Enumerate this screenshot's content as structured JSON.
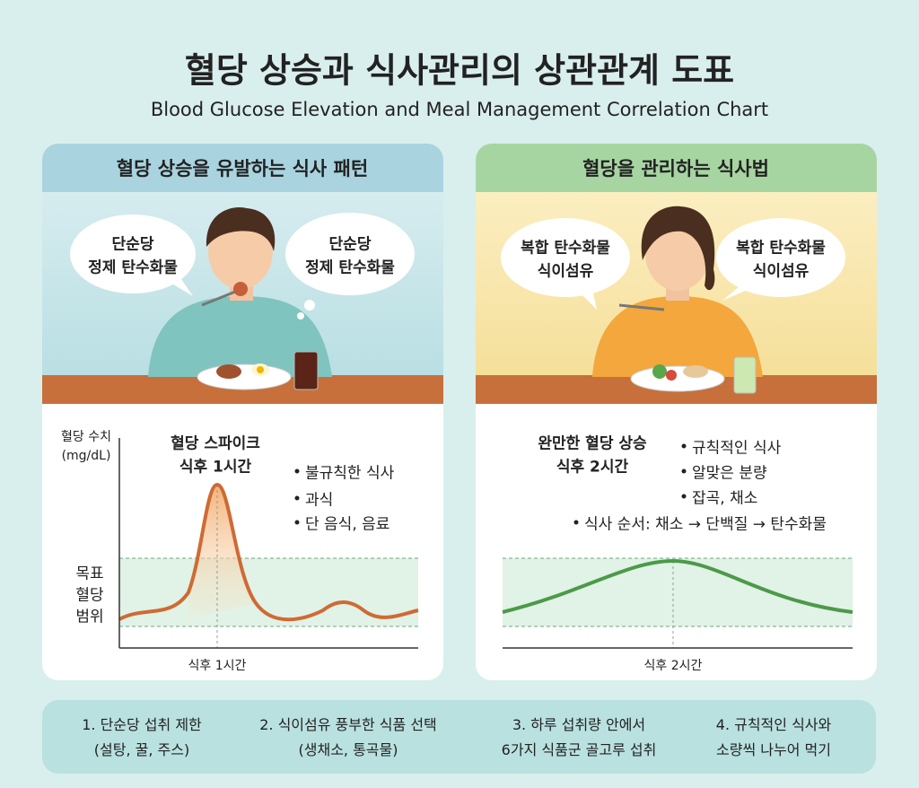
{
  "header": {
    "title": "혈당 상승과 식사관리의 상관관계 도표",
    "subtitle": "Blood Glucose Elevation and Meal Management Correlation Chart"
  },
  "panels": [
    {
      "title": "혈당 상승을 유발하는 식사 패턴",
      "bubbles": [
        [
          "단순당",
          "정제 탄수화물"
        ],
        [
          "단순당",
          "정제 탄수화물"
        ]
      ],
      "chart": {
        "y_label": [
          "혈당 수치",
          "(mg/dL)"
        ],
        "target_label": [
          "목표",
          "혈당",
          "범위"
        ],
        "peak_label": [
          "혈당 스파이크",
          "식후 1시간"
        ],
        "bullets": [
          "불규칙한 식사",
          "과식",
          "단 음식, 음료"
        ],
        "x_label": "식후 1시간"
      }
    },
    {
      "title": "혈당을 관리하는 식사법",
      "bubbles": [
        [
          "복합 탄수화물",
          "식이섬유"
        ],
        [
          "복합 탄수화물",
          "식이섬유"
        ]
      ],
      "chart": {
        "peak_label": [
          "완만한 혈당 상승",
          "식후 2시간"
        ],
        "bullets": [
          "규칙적인 식사",
          "알맞은 분량",
          "잡곡, 채소",
          "식사 순서: 채소 → 단백질 → 탄수화물"
        ],
        "x_label": "식후 2시간"
      }
    }
  ],
  "tips": [
    [
      "1. 단순당 섭취 제한",
      "(설탕, 꿀, 주스)"
    ],
    [
      "2. 식이섬유 풍부한 식품 선택",
      "(생채소, 통곡물)"
    ],
    [
      "3. 하루 섭취량 안에서",
      "6가지 식품군 골고루 섭취"
    ],
    [
      "4. 규칙적인 식사와",
      "소량씩 나누어 먹기"
    ]
  ]
}
